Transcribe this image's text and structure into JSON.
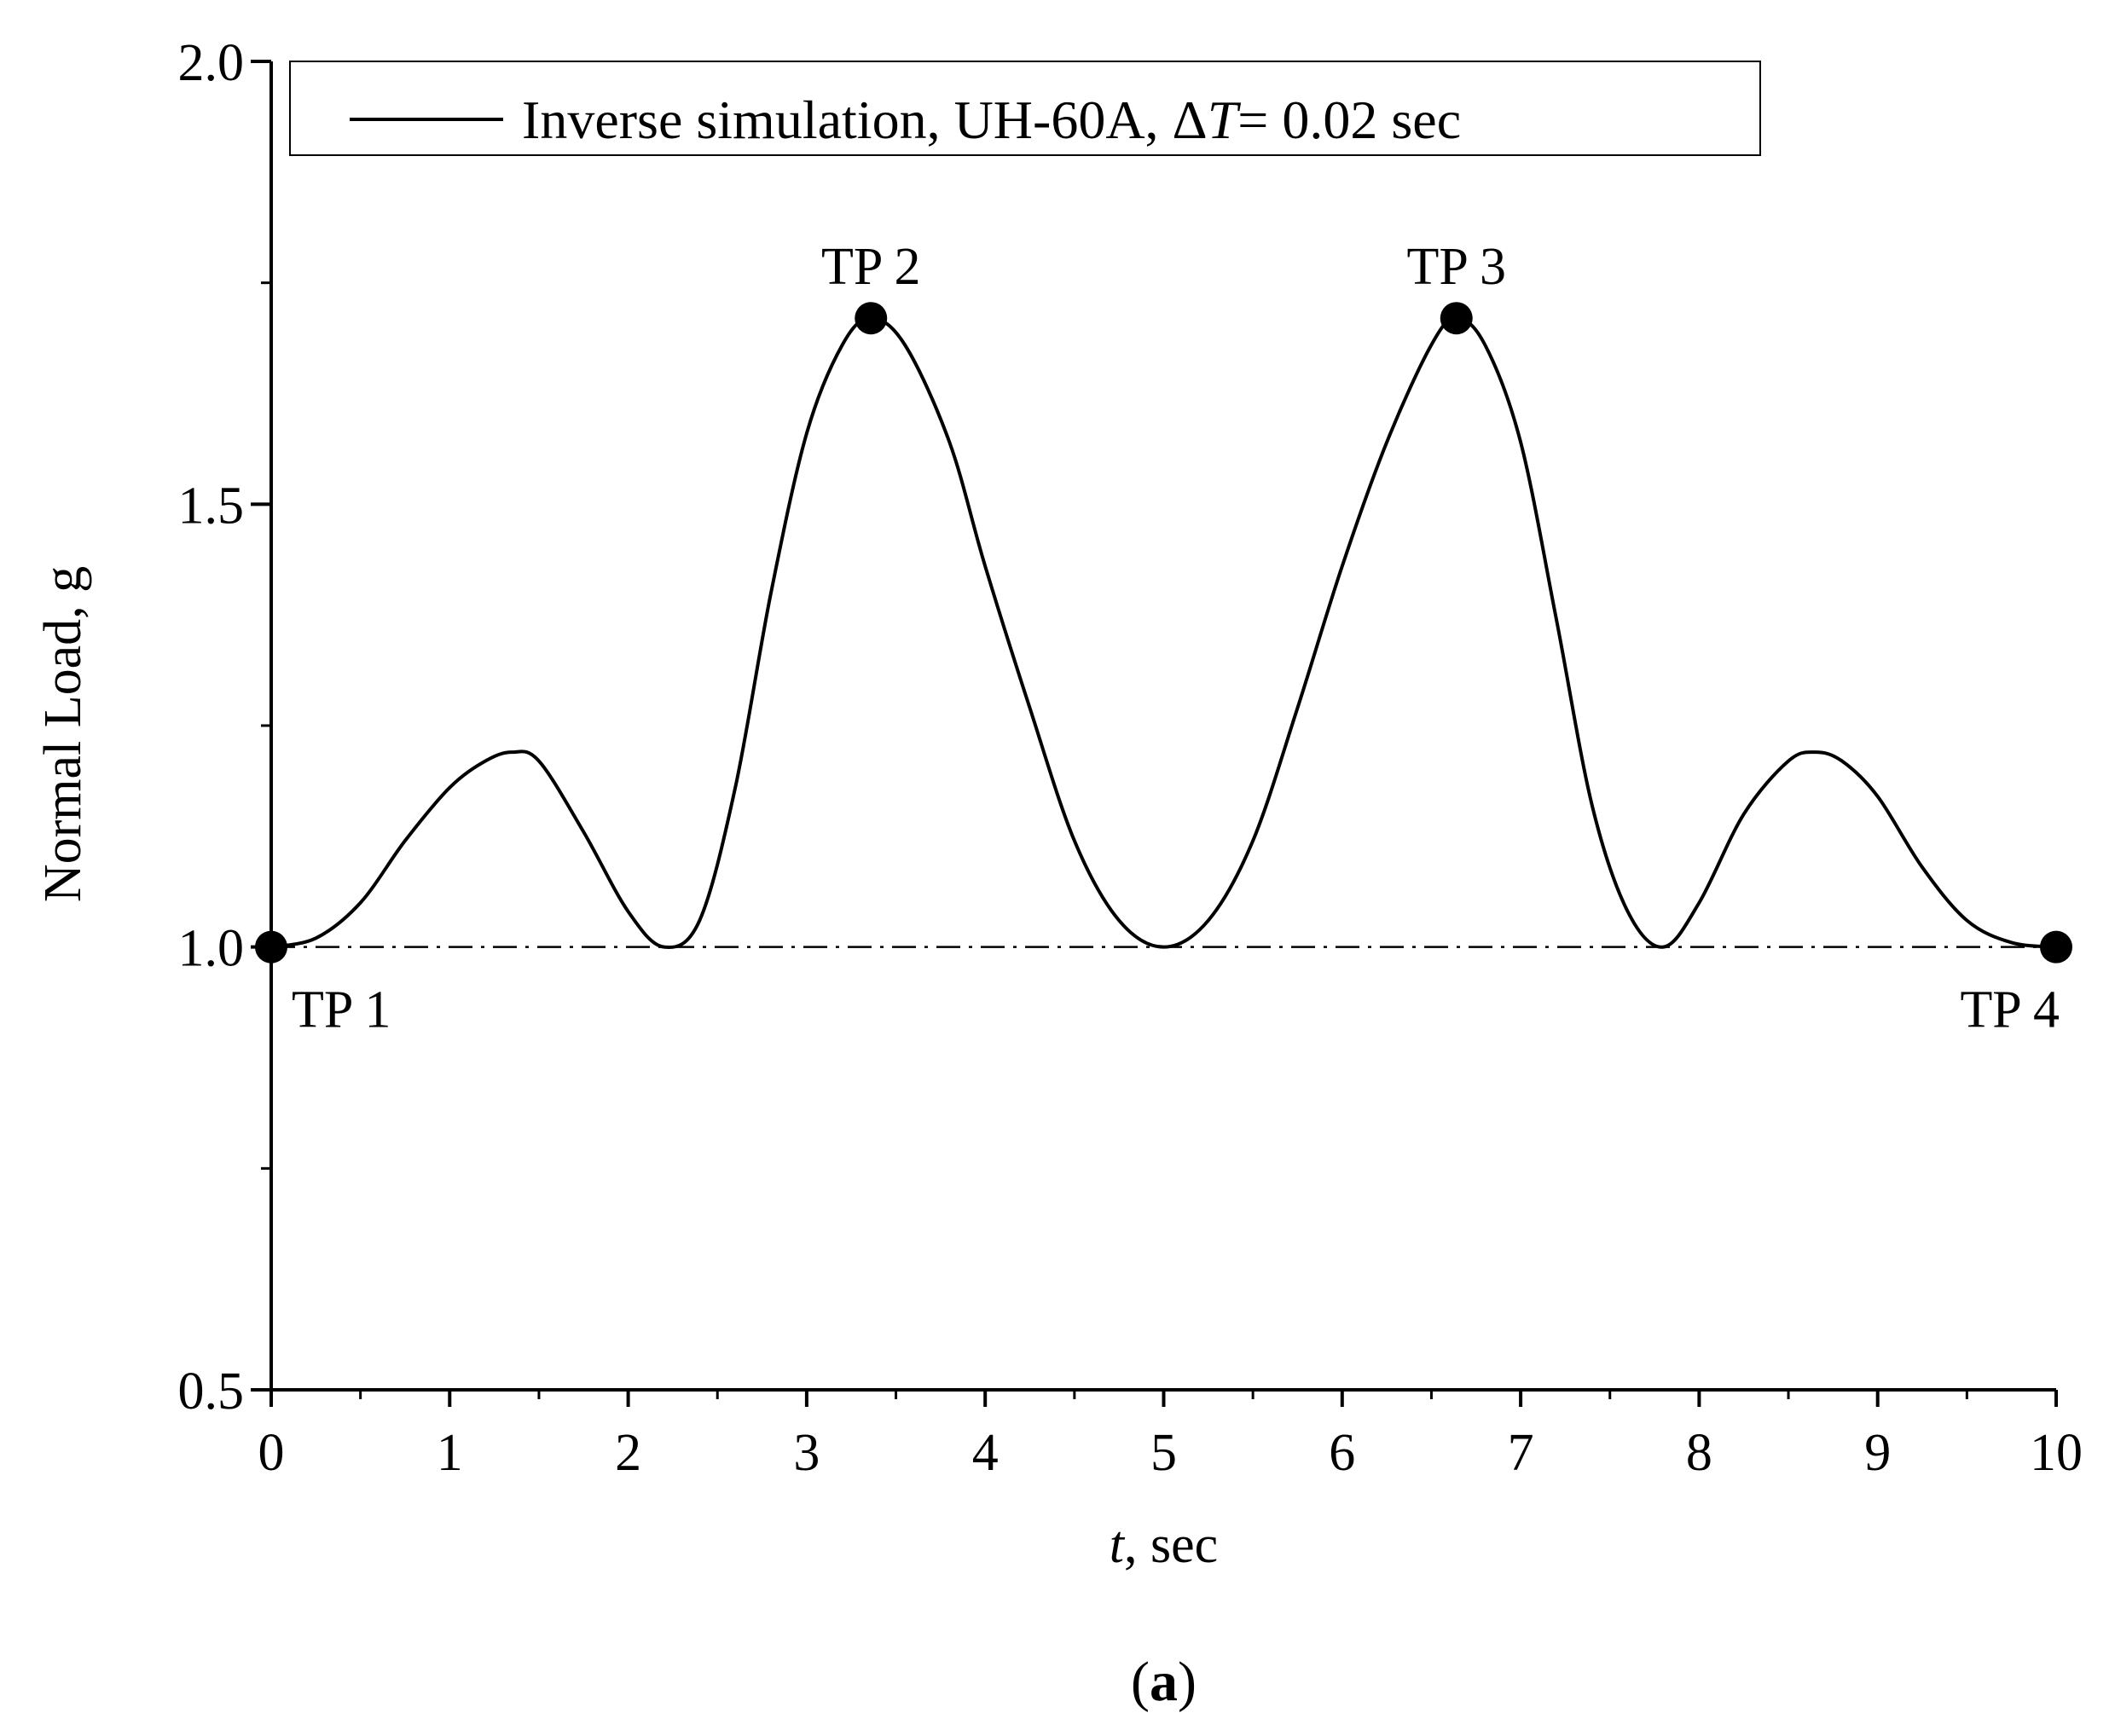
{
  "chart_data": {
    "type": "line",
    "title": "",
    "xlabel": {
      "italic": "t",
      "rest": ", sec"
    },
    "ylabel": "Normal Load, g",
    "xlim": [
      0,
      10
    ],
    "ylim": [
      0.5,
      2.0
    ],
    "x_ticks": [
      "0",
      "1",
      "2",
      "3",
      "4",
      "5",
      "6",
      "7",
      "8",
      "9",
      "10"
    ],
    "y_ticks": [
      "0.5",
      "1.0",
      "1.5",
      "2.0"
    ],
    "grid": false,
    "legend": {
      "position": "top",
      "entries": [
        {
          "prefix": "Inverse simulation, UH-60A, ",
          "delta": "Δ",
          "var": "T",
          "suffix": "= 0.02 sec"
        }
      ]
    },
    "series": [
      {
        "name": "Inverse simulation, UH-60A, ΔT = 0.02 sec",
        "color": "#000000",
        "x": [
          0,
          0.25,
          0.5,
          0.75,
          1.0,
          1.2,
          1.35,
          1.5,
          1.75,
          2.0,
          2.2,
          2.4,
          2.6,
          2.8,
          3.0,
          3.2,
          3.36,
          3.55,
          3.8,
          4.0,
          4.25,
          4.5,
          4.75,
          5.0,
          5.25,
          5.5,
          5.75,
          6.0,
          6.25,
          6.5,
          6.64,
          6.8,
          7.0,
          7.2,
          7.4,
          7.6,
          7.8,
          8.0,
          8.25,
          8.5,
          8.65,
          8.8,
          9.0,
          9.25,
          9.5,
          9.75,
          10.0
        ],
        "y": [
          1.0,
          1.01,
          1.05,
          1.12,
          1.18,
          1.21,
          1.22,
          1.21,
          1.13,
          1.04,
          1.0,
          1.03,
          1.18,
          1.4,
          1.58,
          1.68,
          1.71,
          1.68,
          1.57,
          1.43,
          1.27,
          1.12,
          1.03,
          1.0,
          1.03,
          1.12,
          1.27,
          1.43,
          1.57,
          1.68,
          1.71,
          1.68,
          1.57,
          1.37,
          1.16,
          1.04,
          1.0,
          1.05,
          1.15,
          1.21,
          1.22,
          1.21,
          1.17,
          1.09,
          1.03,
          1.005,
          1.0
        ]
      }
    ],
    "reference_line": {
      "y": 1.0,
      "style": "dash-dot"
    },
    "turning_points": [
      {
        "label": "TP 1",
        "x": 0,
        "y": 1.0,
        "label_pos": "below-right"
      },
      {
        "label": "TP 2",
        "x": 3.36,
        "y": 1.71,
        "label_pos": "above"
      },
      {
        "label": "TP 3",
        "x": 6.64,
        "y": 1.71,
        "label_pos": "above"
      },
      {
        "label": "TP 4",
        "x": 10,
        "y": 1.0,
        "label_pos": "below-left"
      }
    ],
    "panel_label": {
      "open": "(",
      "letter": "a",
      "close": ")"
    }
  }
}
